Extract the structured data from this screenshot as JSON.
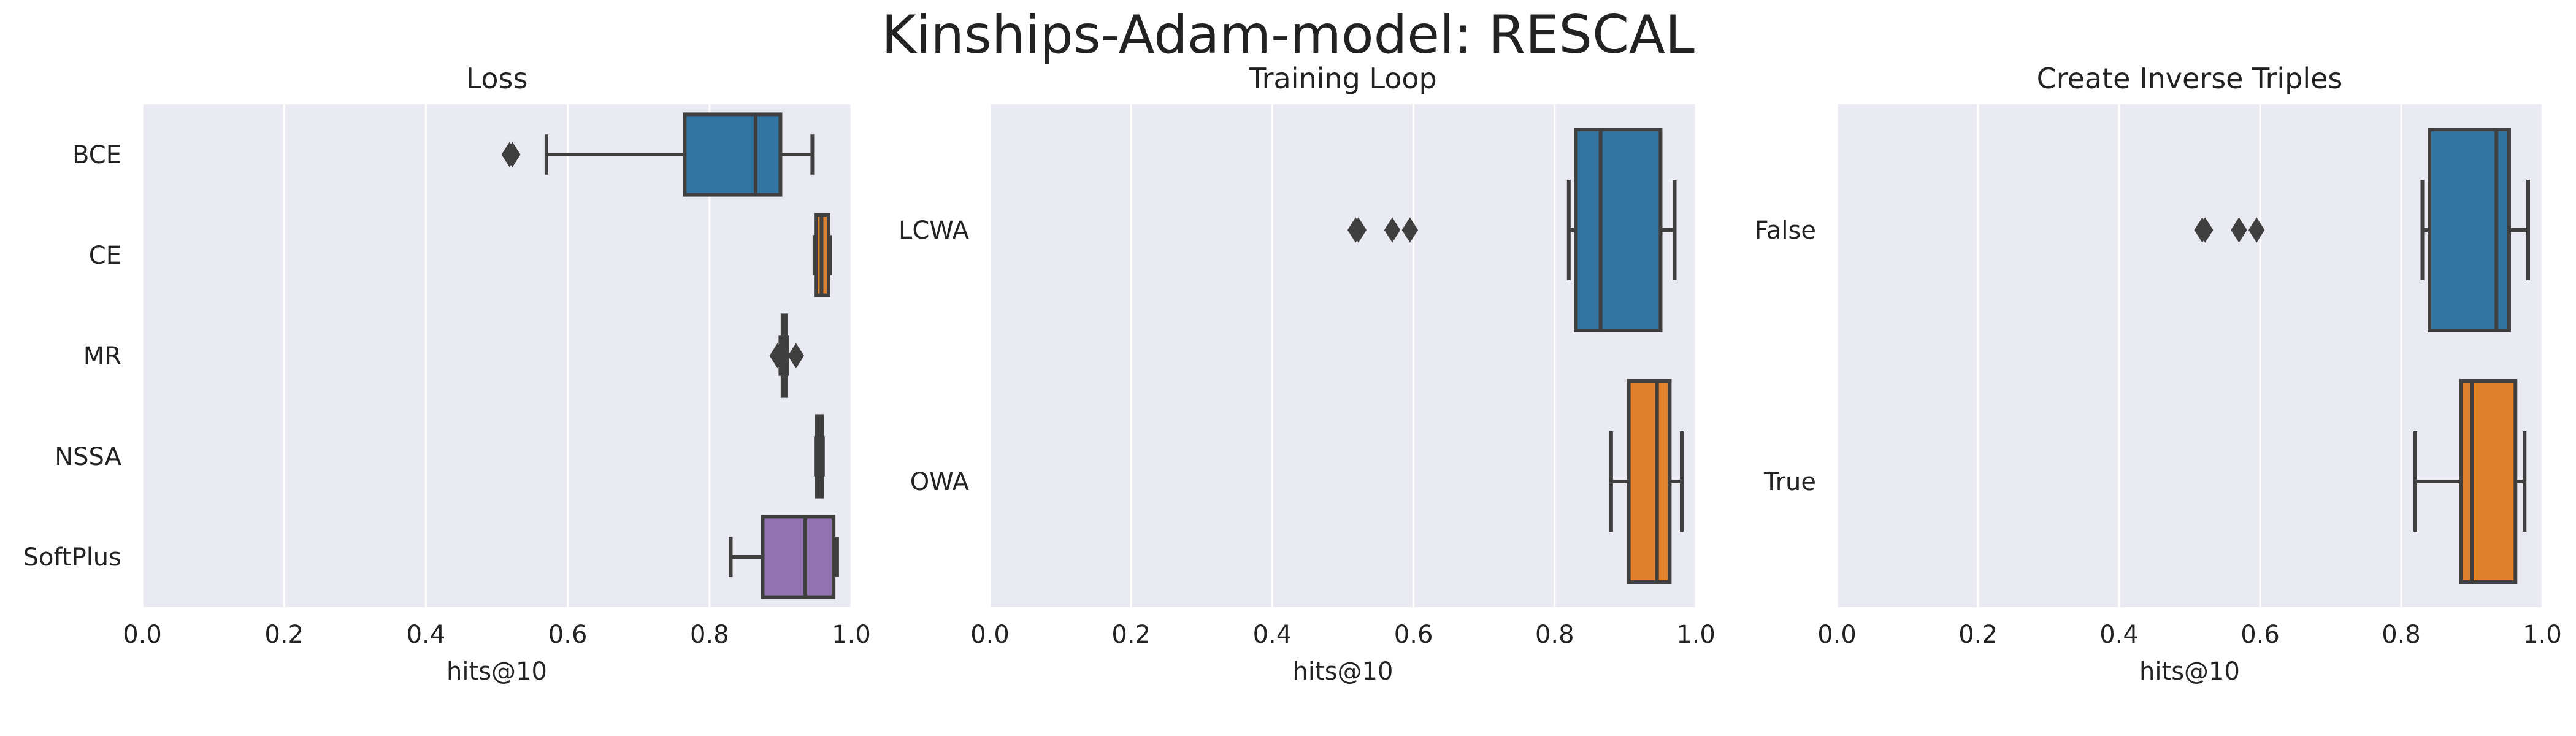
{
  "figure_title": "Kinships-Adam-model: RESCAL",
  "chart_data": [
    {
      "type": "box",
      "orientation": "horizontal",
      "title": "Loss",
      "xlabel": "hits@10",
      "ylabel": "",
      "xlim": [
        0.0,
        1.0
      ],
      "xticks": [
        "0.0",
        "0.2",
        "0.4",
        "0.6",
        "0.8",
        "1.0"
      ],
      "grid": true,
      "categories": [
        "BCE",
        "CE",
        "MR",
        "NSSA",
        "SoftPlus"
      ],
      "boxes": [
        {
          "category": "BCE",
          "whisker_low": 0.57,
          "q1": 0.765,
          "median": 0.865,
          "q3": 0.9,
          "whisker_high": 0.945,
          "outliers": [
            0.518,
            0.522
          ],
          "color": "#3274a1"
        },
        {
          "category": "CE",
          "whisker_low": 0.948,
          "q1": 0.95,
          "median": 0.958,
          "q3": 0.968,
          "whisker_high": 0.97,
          "outliers": [],
          "color": "#e1812c"
        },
        {
          "category": "MR",
          "whisker_low": 0.9,
          "q1": 0.903,
          "median": 0.906,
          "q3": 0.908,
          "whisker_high": 0.91,
          "outliers": [
            0.896,
            0.9,
            0.922
          ],
          "color": "#3a923a"
        },
        {
          "category": "NSSA",
          "whisker_low": 0.95,
          "q1": 0.951,
          "median": 0.955,
          "q3": 0.959,
          "whisker_high": 0.96,
          "outliers": [],
          "color": "#c03d3e"
        },
        {
          "category": "SoftPlus",
          "whisker_low": 0.83,
          "q1": 0.875,
          "median": 0.935,
          "q3": 0.975,
          "whisker_high": 0.98,
          "outliers": [],
          "color": "#9372b2"
        }
      ]
    },
    {
      "type": "box",
      "orientation": "horizontal",
      "title": "Training Loop",
      "xlabel": "hits@10",
      "ylabel": "",
      "xlim": [
        0.0,
        1.0
      ],
      "xticks": [
        "0.0",
        "0.2",
        "0.4",
        "0.6",
        "0.8",
        "1.0"
      ],
      "grid": true,
      "categories": [
        "LCWA",
        "OWA"
      ],
      "boxes": [
        {
          "category": "LCWA",
          "whisker_low": 0.82,
          "q1": 0.83,
          "median": 0.865,
          "q3": 0.95,
          "whisker_high": 0.97,
          "outliers": [
            0.518,
            0.522,
            0.57,
            0.595
          ],
          "color": "#3274a1"
        },
        {
          "category": "OWA",
          "whisker_low": 0.88,
          "q1": 0.905,
          "median": 0.945,
          "q3": 0.963,
          "whisker_high": 0.98,
          "outliers": [],
          "color": "#e1812c"
        }
      ]
    },
    {
      "type": "box",
      "orientation": "horizontal",
      "title": "Create Inverse Triples",
      "xlabel": "hits@10",
      "ylabel": "",
      "xlim": [
        0.0,
        1.0
      ],
      "xticks": [
        "0.0",
        "0.2",
        "0.4",
        "0.6",
        "0.8",
        "1.0"
      ],
      "grid": true,
      "categories": [
        "False",
        "True"
      ],
      "boxes": [
        {
          "category": "False",
          "whisker_low": 0.83,
          "q1": 0.84,
          "median": 0.935,
          "q3": 0.953,
          "whisker_high": 0.98,
          "outliers": [
            0.518,
            0.522,
            0.57,
            0.595
          ],
          "color": "#3274a1"
        },
        {
          "category": "True",
          "whisker_low": 0.82,
          "q1": 0.885,
          "median": 0.9,
          "q3": 0.962,
          "whisker_high": 0.975,
          "outliers": [],
          "color": "#e1812c"
        }
      ]
    }
  ]
}
